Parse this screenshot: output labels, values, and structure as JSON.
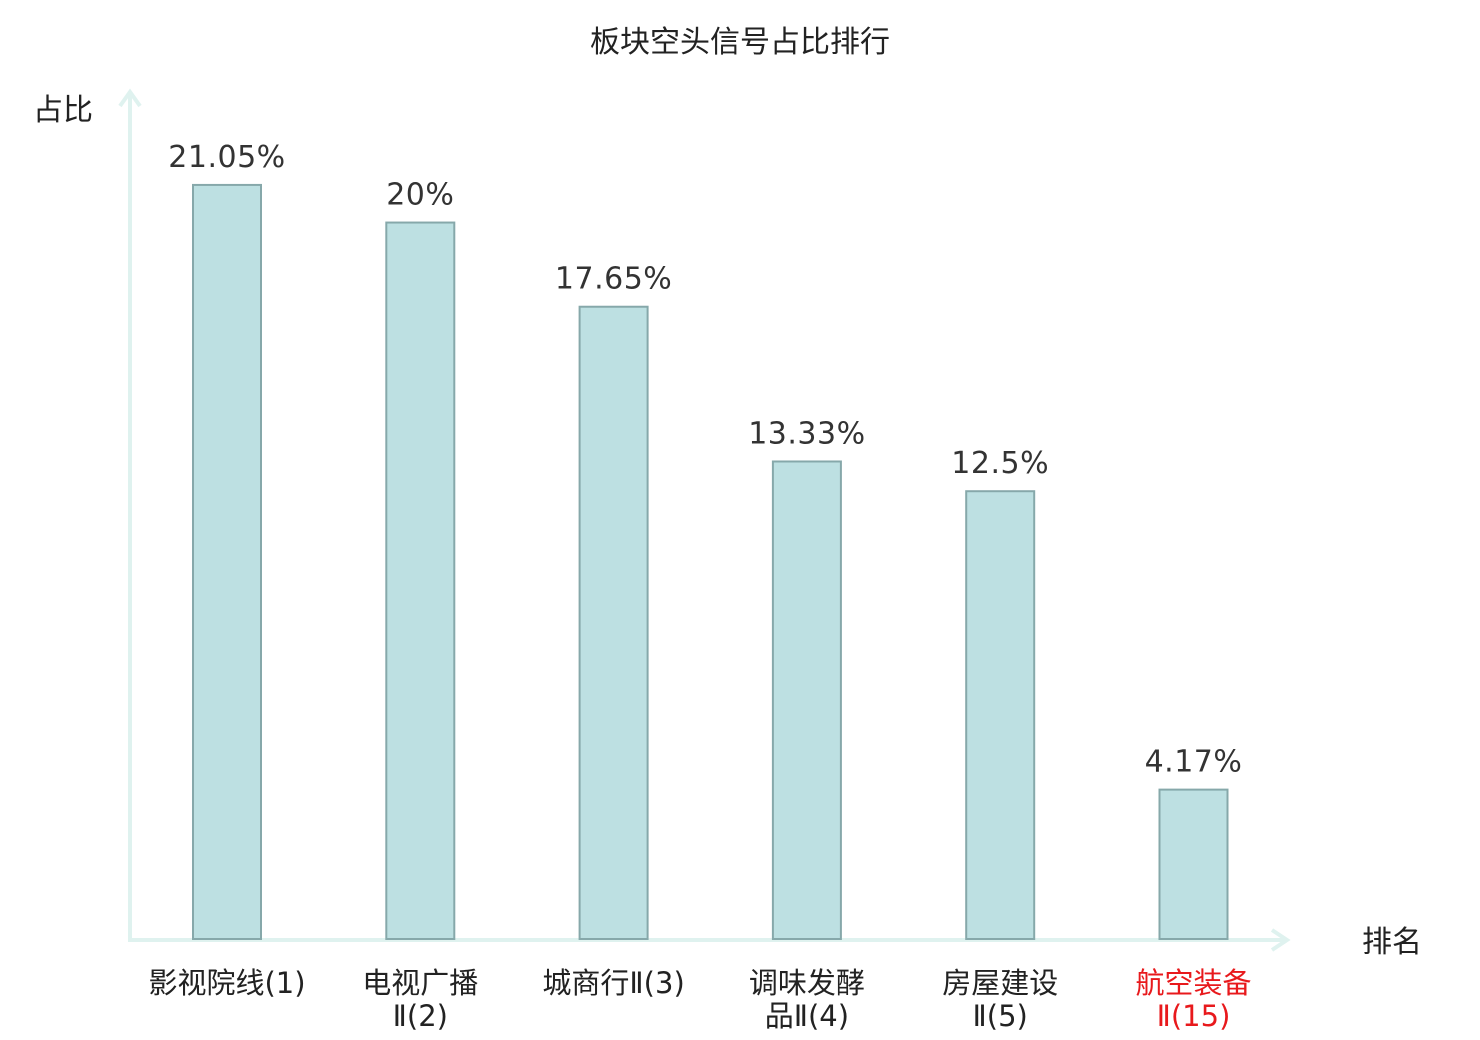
{
  "chart_data": {
    "type": "bar",
    "title": "板块空头信号占比排行",
    "ylabel": "占比",
    "xlabel": "排名",
    "ylim": [
      0,
      23.7
    ],
    "grid": false,
    "categories": [
      {
        "lines": [
          "影视院线(1)"
        ],
        "highlight": false
      },
      {
        "lines": [
          "电视广播",
          "Ⅱ(2)"
        ],
        "highlight": false
      },
      {
        "lines": [
          "城商行Ⅱ(3)"
        ],
        "highlight": false
      },
      {
        "lines": [
          "调味发酵",
          "品Ⅱ(4)"
        ],
        "highlight": false
      },
      {
        "lines": [
          "房屋建设",
          "Ⅱ(5)"
        ],
        "highlight": false
      },
      {
        "lines": [
          "航空装备",
          "Ⅱ(15)"
        ],
        "highlight": true
      }
    ],
    "values": [
      21.05,
      20,
      17.65,
      13.33,
      12.5,
      4.17
    ],
    "value_labels": [
      "21.05%",
      "20%",
      "17.65%",
      "13.33%",
      "12.5%",
      "4.17%"
    ],
    "colors": {
      "bar_fill": "#bde0e2",
      "bar_stroke": "#86a8aa",
      "axis": "#dff2ef",
      "highlight_text": "#e8191c",
      "text": "#222222"
    }
  }
}
